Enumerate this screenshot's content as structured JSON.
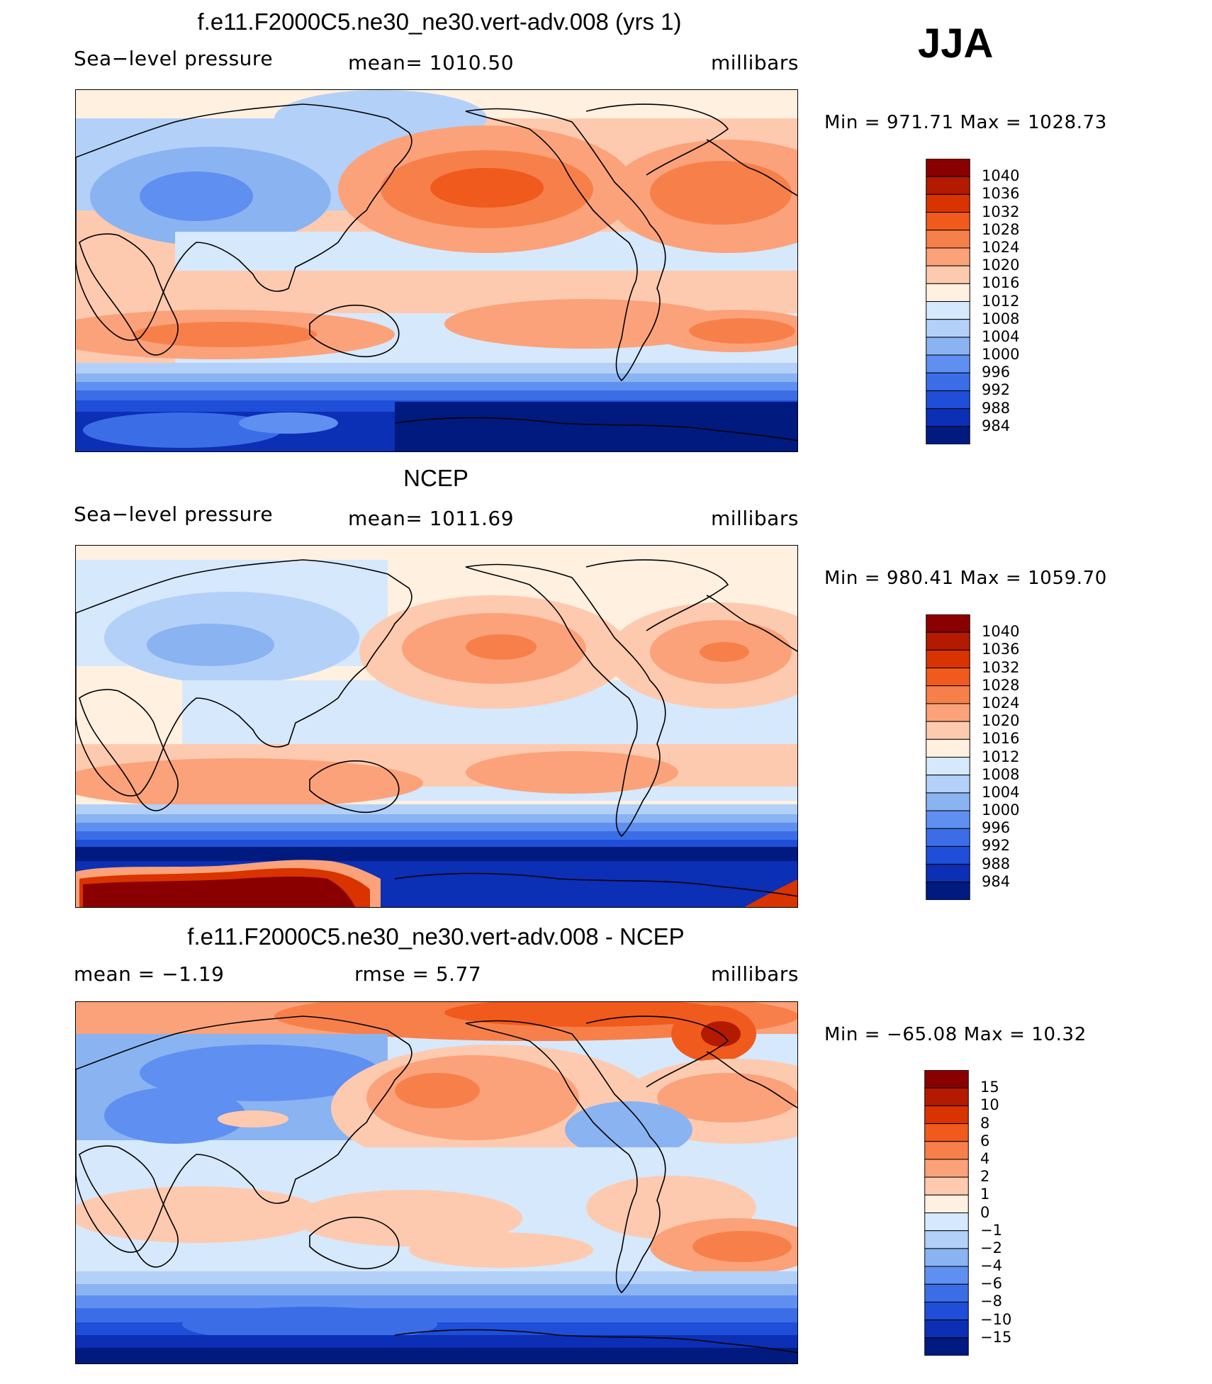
{
  "season": "JJA",
  "panels": [
    {
      "title": "f.e11.F2000C5.ne30_ne30.vert-adv.008 (yrs 1)",
      "left_label": "Sea−level pressure",
      "center_label": "mean=  1010.50",
      "right_label": "millibars",
      "minmax": "Min  =  971.71  Max  =  1028.73"
    },
    {
      "title": "NCEP",
      "left_label": "Sea−level pressure",
      "center_label": "mean=  1011.69",
      "right_label": "millibars",
      "minmax": "Min  =  980.41  Max  =  1059.70"
    },
    {
      "title": "f.e11.F2000C5.ne30_ne30.vert-adv.008 - NCEP",
      "left_label": "mean  =    −1.19",
      "center_label": "rmse  =     5.77",
      "right_label": "millibars",
      "minmax": "Min  =  −65.08  Max  =    10.32"
    }
  ],
  "chart_data": [
    {
      "type": "heatmap",
      "title": "f.e11.F2000C5.ne30_ne30.vert-adv.008 (yrs 1)",
      "variable": "Sea-level pressure",
      "units": "millibars",
      "mean": 1010.5,
      "min": 971.71,
      "max": 1028.73,
      "colorbar_levels": [
        "1040",
        "1036",
        "1032",
        "1028",
        "1024",
        "1020",
        "1016",
        "1012",
        "1008",
        "1004",
        "1000",
        "996",
        "992",
        "988",
        "984"
      ],
      "colors": [
        "#8a0000",
        "#b31a00",
        "#d93300",
        "#f05a1c",
        "#f7804a",
        "#fba27a",
        "#fdcab0",
        "#fff0e0",
        "#d6e8fb",
        "#b3d0f8",
        "#8ab3f2",
        "#5f8ff0",
        "#3b6ee6",
        "#1f4fd8",
        "#0b2fb5",
        "#001a80"
      ]
    },
    {
      "type": "heatmap",
      "title": "NCEP",
      "variable": "Sea-level pressure",
      "units": "millibars",
      "mean": 1011.69,
      "min": 980.41,
      "max": 1059.7,
      "colorbar_levels": [
        "1040",
        "1036",
        "1032",
        "1028",
        "1024",
        "1020",
        "1016",
        "1012",
        "1008",
        "1004",
        "1000",
        "996",
        "992",
        "988",
        "984"
      ],
      "colors": [
        "#8a0000",
        "#b31a00",
        "#d93300",
        "#f05a1c",
        "#f7804a",
        "#fba27a",
        "#fdcab0",
        "#fff0e0",
        "#d6e8fb",
        "#b3d0f8",
        "#8ab3f2",
        "#5f8ff0",
        "#3b6ee6",
        "#1f4fd8",
        "#0b2fb5",
        "#001a80"
      ]
    },
    {
      "type": "heatmap",
      "title": "f.e11.F2000C5.ne30_ne30.vert-adv.008 - NCEP",
      "variable": "Sea-level pressure difference",
      "units": "millibars",
      "mean": -1.19,
      "rmse": 5.77,
      "min": -65.08,
      "max": 10.32,
      "colorbar_levels": [
        "15",
        "10",
        "8",
        "6",
        "4",
        "2",
        "1",
        "0",
        "−1",
        "−2",
        "−4",
        "−6",
        "−8",
        "−10",
        "−15"
      ],
      "colors": [
        "#8a0000",
        "#b31a00",
        "#d93300",
        "#f05a1c",
        "#f7804a",
        "#fba27a",
        "#fdcab0",
        "#fff0e0",
        "#d6e8fb",
        "#b3d0f8",
        "#8ab3f2",
        "#5f8ff0",
        "#3b6ee6",
        "#1f4fd8",
        "#0b2fb5",
        "#001a80"
      ]
    }
  ]
}
